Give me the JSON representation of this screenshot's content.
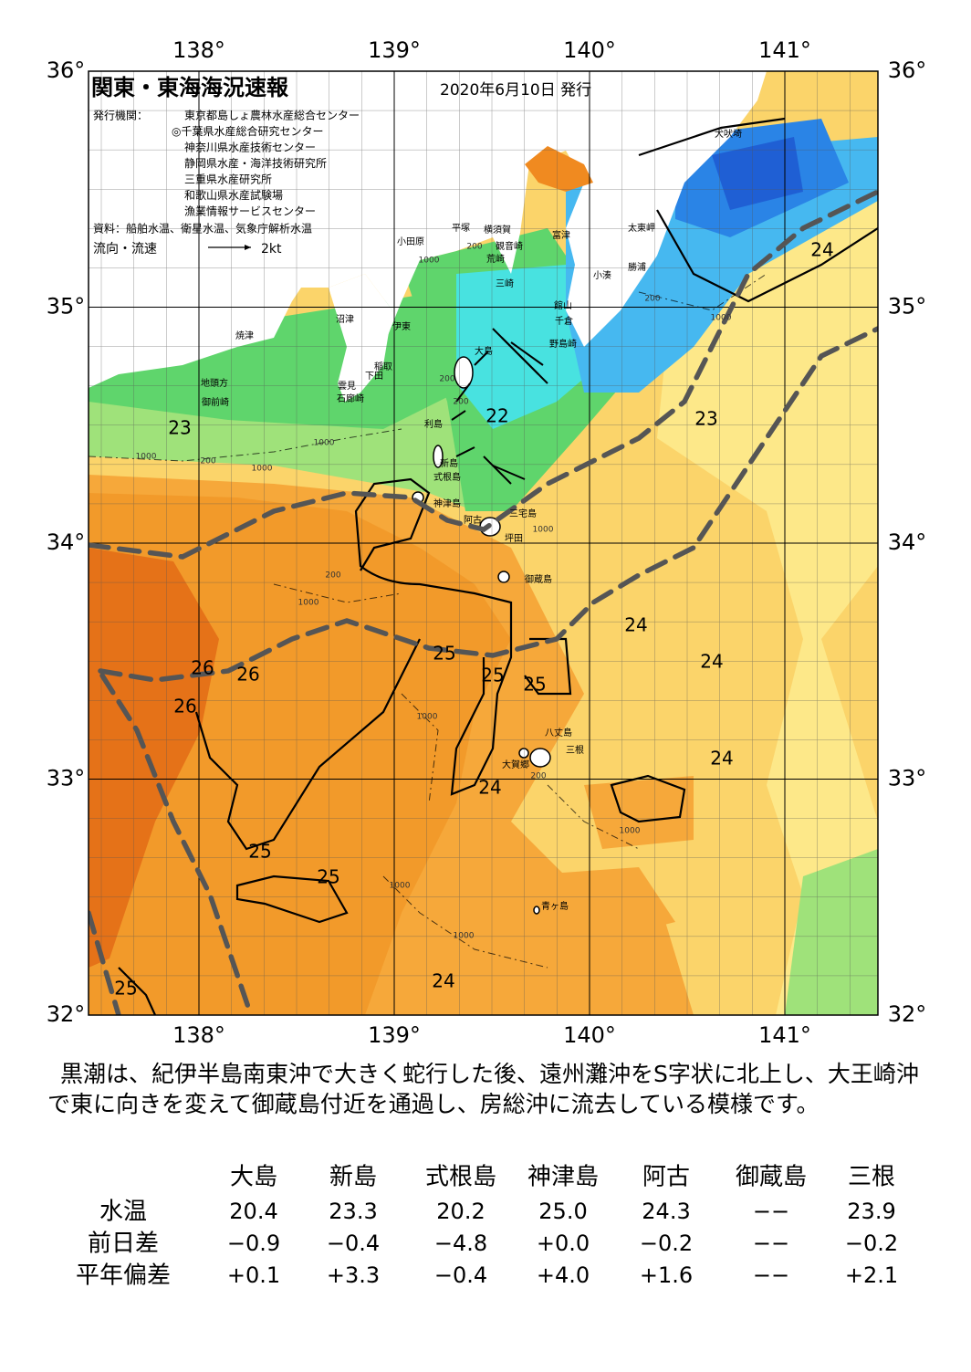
{
  "header": {
    "title": "関東・東海海況速報",
    "date": "2020年6月10日 発行",
    "issuer_label": "発行機関：",
    "issuers": [
      "東京都島しょ農林水産総合センター",
      "◎千葉県水産総合研究センター",
      "神奈川県水産技術センター",
      "静岡県水産・海洋技術研究所",
      "三重県水産研究所",
      "和歌山県水産試験場",
      "漁業情報サービスセンター"
    ],
    "source": "資料：船舶水温、衛星水温、気象庁解析水温",
    "legend_label": "流向・流速",
    "legend_speed": "2kt"
  },
  "map": {
    "lon_labels": [
      {
        "value": 138,
        "label": "138°"
      },
      {
        "value": 139,
        "label": "139°"
      },
      {
        "value": 140,
        "label": "140°"
      },
      {
        "value": 141,
        "label": "141°"
      }
    ],
    "lat_labels": [
      {
        "value": 36,
        "label": "36°"
      },
      {
        "value": 35,
        "label": "35°"
      },
      {
        "value": 34,
        "label": "34°"
      },
      {
        "value": 33,
        "label": "33°"
      },
      {
        "value": 32,
        "label": "32°"
      }
    ],
    "places": [
      "犬吠埼",
      "太東岬",
      "勝浦",
      "小湊",
      "富津",
      "横須賀",
      "平塚",
      "観音崎",
      "小田原",
      "荒崎",
      "三崎",
      "館山",
      "千倉",
      "野島崎",
      "大島",
      "沼津",
      "伊東",
      "焼津",
      "稲取",
      "下田",
      "雲見",
      "石廊崎",
      "地頭方",
      "御前崎",
      "利島",
      "新島",
      "式根島",
      "神津島",
      "三宅島",
      "阿古",
      "坪田",
      "御蔵島",
      "八丈島",
      "三根",
      "大賀郷",
      "青ヶ島"
    ],
    "temperatures": [
      24,
      23,
      22,
      23,
      25,
      25,
      25,
      24,
      24,
      26,
      26,
      26,
      24,
      24,
      25,
      25,
      25,
      24
    ],
    "depths": [
      1000,
      200,
      1000,
      200,
      200,
      200,
      1000,
      200,
      1000,
      1000,
      200,
      1000,
      1000,
      200,
      1000,
      1000,
      1000,
      1000
    ]
  },
  "summary": "黒潮は、紀伊半島南東沖で大きく蛇行した後、遠州灘沖をS字状に北上し、大王崎沖で東に向きを変えて御蔵島付近を通過し、房総沖に流去している模様です。",
  "table": {
    "columns": [
      "大島",
      "新島",
      "式根島",
      "神津島",
      "阿古",
      "御蔵島",
      "三根"
    ],
    "rows": [
      {
        "label": "水温",
        "values": [
          "20.4",
          "23.3",
          "20.2",
          "25.0",
          "24.3",
          "−−",
          "23.9"
        ]
      },
      {
        "label": "前日差",
        "values": [
          "−0.9",
          "−0.4",
          "−4.8",
          "+0.0",
          "−0.2",
          "−−",
          "−0.2"
        ]
      },
      {
        "label": "平年偏差",
        "values": [
          "+0.1",
          "+3.3",
          "−0.4",
          "+4.0",
          "+1.6",
          "−−",
          "+2.1"
        ]
      }
    ]
  }
}
